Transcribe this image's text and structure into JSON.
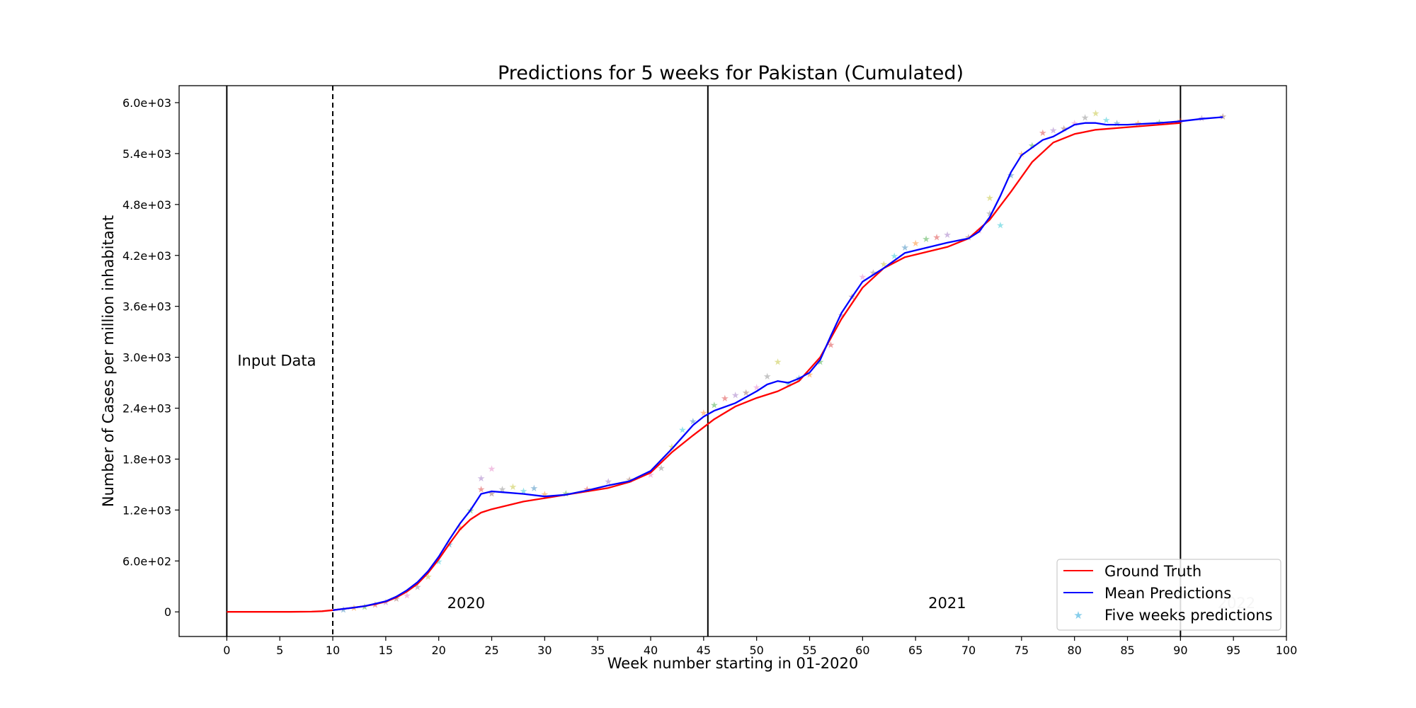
{
  "chart_data": {
    "type": "line",
    "title": "Predictions for 5 weeks for Pakistan (Cumulated)",
    "xlabel": "Week number starting in 01-2020",
    "ylabel": "Number of Cases per million inhabitant",
    "xlim": [
      -4.5,
      100
    ],
    "ylim": [
      -290,
      6200
    ],
    "xticks": [
      0,
      5,
      10,
      15,
      20,
      25,
      30,
      35,
      40,
      45,
      50,
      55,
      60,
      65,
      70,
      75,
      80,
      85,
      90,
      95,
      100
    ],
    "xtick_labels": [
      "0",
      "5",
      "10",
      "15",
      "20",
      "25",
      "30",
      "35",
      "40",
      "45",
      "50",
      "55",
      "60",
      "65",
      "70",
      "75",
      "80",
      "85",
      "90",
      "95",
      "100"
    ],
    "yticks": [
      0,
      600,
      1200,
      1800,
      2400,
      3000,
      3600,
      4200,
      4800,
      5400,
      6000
    ],
    "ytick_labels": [
      "0",
      "6.0e+02",
      "1.2e+03",
      "1.8e+03",
      "2.4e+03",
      "3.0e+03",
      "3.6e+03",
      "4.2e+03",
      "4.8e+03",
      "5.4e+03",
      "6.0e+03"
    ],
    "grid": false,
    "legend_position": "lower right",
    "legend": [
      "Ground Truth",
      "Mean Predictions",
      "Five weeks predictions"
    ],
    "vlines": [
      {
        "x": 0,
        "style": "solid"
      },
      {
        "x": 10,
        "style": "dashed"
      },
      {
        "x": 45.4,
        "style": "solid"
      },
      {
        "x": 90,
        "style": "solid"
      }
    ],
    "annotations": [
      {
        "text": "Input Data",
        "x": 1,
        "y": 2900
      },
      {
        "text": "2020",
        "x": 20.8,
        "y": 45
      },
      {
        "text": "2021",
        "x": 66.2,
        "y": 45
      },
      {
        "text": "2022",
        "x": 93.5,
        "y": 45
      }
    ],
    "series": [
      {
        "name": "Ground Truth",
        "color": "#ff0000",
        "x": [
          0,
          2,
          4,
          6,
          8,
          9,
          10,
          11,
          12,
          13,
          14,
          15,
          16,
          17,
          18,
          19,
          20,
          21,
          22,
          23,
          24,
          25,
          26,
          28,
          30,
          32,
          34,
          36,
          38,
          40,
          42,
          44,
          46,
          48,
          50,
          52,
          54,
          56,
          58,
          60,
          62,
          64,
          66,
          68,
          70,
          72,
          74,
          76,
          78,
          80,
          82,
          84,
          86,
          88,
          90
        ],
        "y": [
          0,
          0,
          0,
          0,
          3,
          8,
          20,
          35,
          50,
          68,
          90,
          120,
          170,
          240,
          330,
          460,
          620,
          800,
          970,
          1090,
          1170,
          1210,
          1240,
          1300,
          1340,
          1380,
          1420,
          1460,
          1530,
          1640,
          1880,
          2080,
          2270,
          2420,
          2520,
          2600,
          2720,
          3000,
          3450,
          3820,
          4050,
          4180,
          4240,
          4300,
          4400,
          4620,
          4950,
          5300,
          5530,
          5630,
          5680,
          5700,
          5720,
          5740,
          5760
        ]
      },
      {
        "name": "Mean Predictions",
        "color": "#0000ff",
        "x": [
          10,
          11,
          12,
          13,
          14,
          15,
          16,
          17,
          18,
          19,
          20,
          21,
          22,
          23,
          24,
          25,
          26,
          28,
          30,
          32,
          34,
          36,
          38,
          40,
          42,
          43,
          44,
          45,
          46,
          48,
          50,
          51,
          52,
          53,
          54,
          55,
          56,
          57,
          58,
          59,
          60,
          62,
          64,
          66,
          68,
          70,
          71,
          72,
          73,
          74,
          75,
          76,
          77,
          78,
          79,
          80,
          81,
          82,
          83,
          85,
          88,
          90,
          92,
          94
        ],
        "y": [
          20,
          35,
          50,
          68,
          95,
          125,
          180,
          255,
          350,
          480,
          650,
          850,
          1040,
          1200,
          1390,
          1420,
          1410,
          1390,
          1360,
          1380,
          1430,
          1490,
          1540,
          1660,
          1920,
          2060,
          2200,
          2300,
          2370,
          2460,
          2600,
          2680,
          2720,
          2700,
          2750,
          2820,
          2970,
          3250,
          3520,
          3710,
          3890,
          4050,
          4230,
          4290,
          4350,
          4400,
          4480,
          4650,
          4900,
          5180,
          5380,
          5470,
          5560,
          5600,
          5670,
          5740,
          5760,
          5760,
          5740,
          5740,
          5760,
          5780,
          5810,
          5830
        ]
      },
      {
        "name": "Five weeks predictions",
        "type": "scatter",
        "color": "#87ceeb",
        "x": [
          11,
          12,
          13,
          14,
          15,
          16,
          17,
          18,
          19,
          20,
          21,
          22,
          23,
          24,
          24,
          25,
          25,
          26,
          27,
          28,
          29,
          30,
          32,
          34,
          36,
          38,
          40,
          41,
          42,
          43,
          44,
          45,
          46,
          47,
          48,
          49,
          50,
          51,
          52,
          53,
          54,
          55,
          56,
          57,
          58,
          59,
          60,
          61,
          62,
          63,
          64,
          65,
          66,
          67,
          68,
          70,
          71,
          72,
          72,
          73,
          74,
          75,
          76,
          77,
          78,
          79,
          80,
          81,
          82,
          83,
          84,
          86,
          88,
          90,
          92,
          94
        ],
        "y": [
          30,
          50,
          65,
          90,
          120,
          160,
          200,
          300,
          420,
          600,
          800,
          1000,
          1200,
          1450,
          1580,
          1400,
          1690,
          1450,
          1480,
          1430,
          1460,
          1390,
          1400,
          1450,
          1540,
          1560,
          1620,
          1700,
          1950,
          2150,
          2250,
          2350,
          2440,
          2520,
          2560,
          2590,
          2650,
          2780,
          2950,
          2690,
          2760,
          2800,
          2950,
          3150,
          3500,
          3720,
          3950,
          4000,
          4100,
          4200,
          4300,
          4350,
          4400,
          4420,
          4450,
          4420,
          4500,
          4700,
          4880,
          4560,
          5150,
          5400,
          5500,
          5650,
          5680,
          5700,
          5760,
          5830,
          5880,
          5800,
          5760,
          5760,
          5770,
          5790,
          5820,
          5840
        ]
      }
    ]
  }
}
